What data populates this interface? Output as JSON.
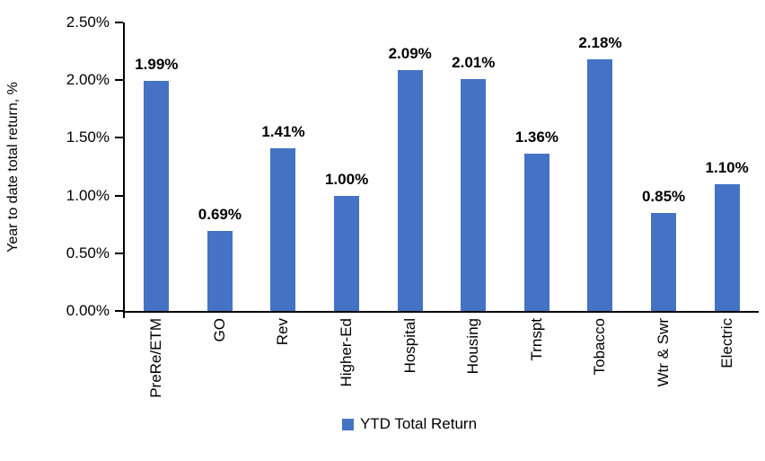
{
  "chart_data": {
    "type": "bar",
    "title": "",
    "ylabel": "Year to date total return, %",
    "xlabel": "",
    "categories": [
      "PreRe/ETM",
      "GO",
      "Rev",
      "Higher-Ed",
      "Hospital",
      "Housing",
      "Trnspt",
      "Tobacco",
      "Wtr & Swr",
      "Electric"
    ],
    "values": [
      1.99,
      0.69,
      1.41,
      1.0,
      2.09,
      2.01,
      1.36,
      2.18,
      0.85,
      1.1
    ],
    "value_labels": [
      "1.99%",
      "0.69%",
      "1.41%",
      "1.00%",
      "2.09%",
      "2.01%",
      "1.36%",
      "2.18%",
      "0.85%",
      "1.10%"
    ],
    "ylim": [
      0,
      2.5
    ],
    "yticks": {
      "values": [
        0,
        0.5,
        1.0,
        1.5,
        2.0,
        2.5
      ],
      "labels": [
        "0.00%",
        "0.50%",
        "1.00%",
        "1.50%",
        "2.00%",
        "2.50%"
      ]
    },
    "grid": false,
    "bar_color": "#4472C4",
    "axis_color": "#000000",
    "legend_position": "bottom-center",
    "legend": [
      {
        "label": "YTD Total Return",
        "color": "#4472C4"
      }
    ]
  }
}
